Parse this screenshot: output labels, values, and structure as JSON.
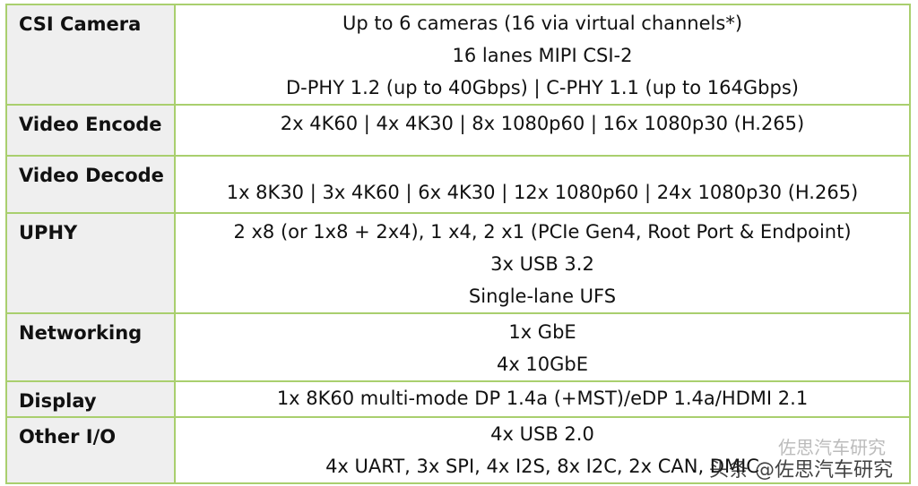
{
  "rows": [
    {
      "label": "CSI Camera",
      "lines": [
        "Up to 6 cameras (16 via virtual channels*)",
        "16 lanes MIPI CSI-2",
        "D-PHY 1.2 (up to 40Gbps) | C-PHY 1.1 (up to 164Gbps)"
      ]
    },
    {
      "label": "Video Encode",
      "lines": [
        "2x 4K60 | 4x 4K30 | 8x 1080p60 | 16x 1080p30 (H.265)"
      ]
    },
    {
      "label": "Video Decode",
      "lines": [
        "1x 8K30 | 3x 4K60 | 6x 4K30 | 12x 1080p60 | 24x 1080p30 (H.265)"
      ]
    },
    {
      "label": "UPHY",
      "lines": [
        "2 x8 (or 1x8 + 2x4), 1 x4, 2 x1 (PCIe Gen4, Root Port & Endpoint)",
        "3x USB 3.2",
        "Single-lane UFS"
      ]
    },
    {
      "label": "Networking",
      "lines": [
        "1x GbE",
        "4x 10GbE"
      ]
    },
    {
      "label": "Display",
      "lines": [
        "1x 8K60 multi-mode DP 1.4a (+MST)/eDP 1.4a/HDMI 2.1"
      ]
    },
    {
      "label": "Other I/O",
      "lines": [
        "4x USB 2.0",
        "4x UART, 3x SPI, 4x I2S, 8x I2C, 2x CAN, DMIC"
      ]
    }
  ],
  "watermark": "头条 @佐思汽车研究",
  "watermark_faint": "佐思汽车研究"
}
